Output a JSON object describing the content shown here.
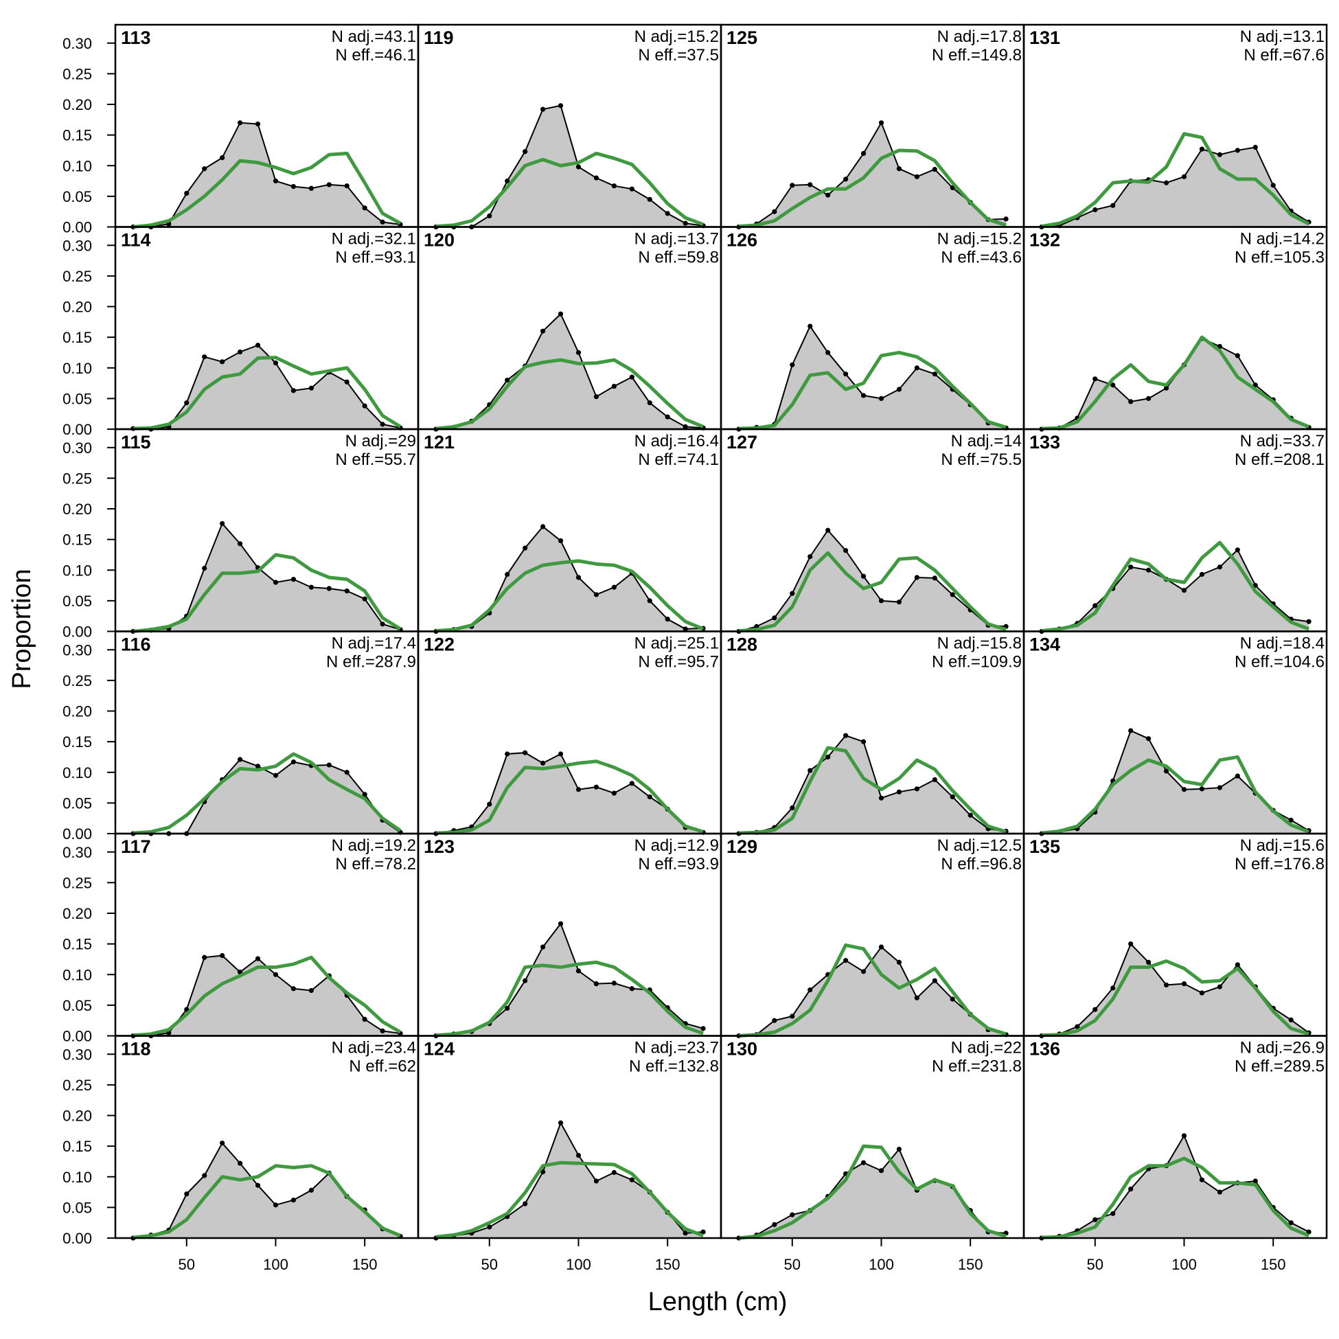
{
  "chart_data": {
    "type": "line",
    "title": "",
    "xlabel": "Length (cm)",
    "ylabel": "Proportion",
    "xlim": [
      10,
      180
    ],
    "ylim": [
      0,
      0.33
    ],
    "xticks": [
      50,
      100,
      150
    ],
    "yticks": [
      0,
      0.05,
      0.1,
      0.15,
      0.2,
      0.25,
      0.3
    ],
    "ytick_labels": [
      "0.00",
      "0.05",
      "0.10",
      "0.15",
      "0.20",
      "0.25",
      "0.30"
    ],
    "grid": false,
    "layout": {
      "columns": 4,
      "rows": 6,
      "fill": "column-major"
    },
    "x": [
      20,
      30,
      40,
      50,
      60,
      70,
      80,
      90,
      100,
      110,
      120,
      130,
      140,
      150,
      160,
      170
    ],
    "colors": {
      "observed_fill": "#c8c8c8",
      "observed_line": "#000000",
      "expected_line": "#3f9a3f",
      "zero_line": "#bdbdbd",
      "frame": "#000000"
    },
    "panels": [
      {
        "label": "113",
        "n_adj": "N adj.=43.1",
        "n_eff": "N eff.=46.1",
        "observed": [
          0.0,
          0.0,
          0.005,
          0.055,
          0.095,
          0.113,
          0.17,
          0.168,
          0.075,
          0.066,
          0.063,
          0.069,
          0.067,
          0.031,
          0.008,
          0.004
        ],
        "expected": [
          0.0,
          0.003,
          0.01,
          0.028,
          0.05,
          0.077,
          0.108,
          0.105,
          0.097,
          0.087,
          0.097,
          0.118,
          0.12,
          0.072,
          0.022,
          0.006
        ]
      },
      {
        "label": "114",
        "n_adj": "N adj.=32.1",
        "n_eff": "N eff.=93.1",
        "observed": [
          0.001,
          0.0,
          0.004,
          0.043,
          0.118,
          0.11,
          0.126,
          0.137,
          0.108,
          0.063,
          0.067,
          0.093,
          0.077,
          0.038,
          0.008,
          0.002
        ],
        "expected": [
          0.001,
          0.002,
          0.008,
          0.028,
          0.065,
          0.085,
          0.09,
          0.116,
          0.117,
          0.103,
          0.09,
          0.095,
          0.1,
          0.065,
          0.022,
          0.004
        ]
      },
      {
        "label": "115",
        "n_adj": "N adj.=29",
        "n_eff": "N eff.=55.7",
        "observed": [
          0.0,
          0.002,
          0.005,
          0.025,
          0.103,
          0.176,
          0.143,
          0.104,
          0.08,
          0.085,
          0.072,
          0.07,
          0.066,
          0.053,
          0.012,
          0.003
        ],
        "expected": [
          0.0,
          0.003,
          0.008,
          0.02,
          0.06,
          0.095,
          0.095,
          0.098,
          0.125,
          0.12,
          0.1,
          0.088,
          0.085,
          0.066,
          0.022,
          0.004
        ]
      },
      {
        "label": "116",
        "n_adj": "N adj.=17.4",
        "n_eff": "N eff.=287.9",
        "observed": [
          0.0,
          0.0,
          0.0,
          0.0,
          0.052,
          0.088,
          0.121,
          0.11,
          0.095,
          0.117,
          0.111,
          0.112,
          0.1,
          0.064,
          0.022,
          0.002
        ],
        "expected": [
          0.001,
          0.003,
          0.01,
          0.03,
          0.057,
          0.085,
          0.106,
          0.104,
          0.11,
          0.13,
          0.116,
          0.088,
          0.072,
          0.057,
          0.025,
          0.005
        ]
      },
      {
        "label": "117",
        "n_adj": "N adj.=19.2",
        "n_eff": "N eff.=78.2",
        "observed": [
          0.0,
          0.0,
          0.005,
          0.043,
          0.128,
          0.131,
          0.104,
          0.126,
          0.1,
          0.077,
          0.074,
          0.098,
          0.066,
          0.027,
          0.008,
          0.004
        ],
        "expected": [
          0.001,
          0.003,
          0.01,
          0.035,
          0.065,
          0.085,
          0.098,
          0.112,
          0.112,
          0.117,
          0.128,
          0.095,
          0.07,
          0.05,
          0.023,
          0.006
        ]
      },
      {
        "label": "118",
        "n_adj": "N adj.=23.4",
        "n_eff": "N eff.=62",
        "observed": [
          0.0,
          0.005,
          0.013,
          0.072,
          0.102,
          0.155,
          0.122,
          0.086,
          0.054,
          0.062,
          0.078,
          0.106,
          0.068,
          0.046,
          0.015,
          0.003
        ],
        "expected": [
          0.001,
          0.004,
          0.01,
          0.03,
          0.066,
          0.1,
          0.095,
          0.1,
          0.118,
          0.115,
          0.118,
          0.106,
          0.068,
          0.043,
          0.016,
          0.004
        ]
      },
      {
        "label": "119",
        "n_adj": "N adj.=15.2",
        "n_eff": "N eff.=37.5",
        "observed": [
          0.0,
          0.0,
          0.0,
          0.018,
          0.075,
          0.123,
          0.192,
          0.198,
          0.098,
          0.08,
          0.067,
          0.062,
          0.045,
          0.022,
          0.006,
          0.002
        ],
        "expected": [
          0.001,
          0.003,
          0.01,
          0.033,
          0.065,
          0.1,
          0.11,
          0.1,
          0.105,
          0.12,
          0.112,
          0.102,
          0.072,
          0.038,
          0.015,
          0.004
        ]
      },
      {
        "label": "120",
        "n_adj": "N adj.=13.7",
        "n_eff": "N eff.=59.8",
        "observed": [
          0.0,
          0.003,
          0.013,
          0.04,
          0.08,
          0.103,
          0.16,
          0.188,
          0.125,
          0.053,
          0.07,
          0.085,
          0.043,
          0.02,
          0.004,
          0.002
        ],
        "expected": [
          0.001,
          0.004,
          0.012,
          0.033,
          0.07,
          0.102,
          0.109,
          0.113,
          0.107,
          0.108,
          0.113,
          0.096,
          0.07,
          0.042,
          0.016,
          0.004
        ]
      },
      {
        "label": "121",
        "n_adj": "N adj.=16.4",
        "n_eff": "N eff.=74.1",
        "observed": [
          0.0,
          0.003,
          0.008,
          0.03,
          0.093,
          0.136,
          0.171,
          0.148,
          0.088,
          0.06,
          0.072,
          0.095,
          0.05,
          0.02,
          0.004,
          0.005
        ],
        "expected": [
          0.001,
          0.003,
          0.01,
          0.035,
          0.07,
          0.095,
          0.108,
          0.112,
          0.115,
          0.11,
          0.108,
          0.098,
          0.072,
          0.042,
          0.016,
          0.004
        ]
      },
      {
        "label": "122",
        "n_adj": "N adj.=25.1",
        "n_eff": "N eff.=95.7",
        "observed": [
          0.0,
          0.005,
          0.011,
          0.048,
          0.13,
          0.132,
          0.115,
          0.13,
          0.072,
          0.076,
          0.066,
          0.082,
          0.06,
          0.04,
          0.01,
          0.002
        ],
        "expected": [
          0.001,
          0.002,
          0.006,
          0.022,
          0.075,
          0.108,
          0.106,
          0.11,
          0.115,
          0.118,
          0.108,
          0.095,
          0.072,
          0.04,
          0.012,
          0.003
        ]
      },
      {
        "label": "123",
        "n_adj": "N adj.=12.9",
        "n_eff": "N eff.=93.9",
        "observed": [
          0.0,
          0.003,
          0.007,
          0.02,
          0.045,
          0.09,
          0.145,
          0.183,
          0.106,
          0.085,
          0.086,
          0.077,
          0.075,
          0.046,
          0.02,
          0.012
        ],
        "expected": [
          0.001,
          0.003,
          0.008,
          0.022,
          0.055,
          0.112,
          0.115,
          0.112,
          0.117,
          0.12,
          0.112,
          0.092,
          0.07,
          0.04,
          0.014,
          0.004
        ]
      },
      {
        "label": "124",
        "n_adj": "N adj.=23.7",
        "n_eff": "N eff.=132.8",
        "observed": [
          0.0,
          0.004,
          0.008,
          0.018,
          0.035,
          0.056,
          0.108,
          0.188,
          0.135,
          0.093,
          0.107,
          0.095,
          0.075,
          0.042,
          0.008,
          0.01
        ],
        "expected": [
          0.002,
          0.005,
          0.012,
          0.025,
          0.04,
          0.074,
          0.118,
          0.123,
          0.122,
          0.121,
          0.12,
          0.105,
          0.075,
          0.042,
          0.015,
          0.004
        ]
      },
      {
        "label": "125",
        "n_adj": "N adj.=17.8",
        "n_eff": "N eff.=149.8",
        "observed": [
          0.0,
          0.005,
          0.025,
          0.068,
          0.069,
          0.052,
          0.078,
          0.12,
          0.17,
          0.095,
          0.082,
          0.094,
          0.064,
          0.04,
          0.012,
          0.013
        ],
        "expected": [
          0.001,
          0.003,
          0.01,
          0.03,
          0.048,
          0.062,
          0.062,
          0.08,
          0.112,
          0.125,
          0.124,
          0.108,
          0.072,
          0.04,
          0.012,
          0.003
        ]
      },
      {
        "label": "126",
        "n_adj": "N adj.=15.2",
        "n_eff": "N eff.=43.6",
        "observed": [
          0.0,
          0.003,
          0.008,
          0.105,
          0.168,
          0.125,
          0.09,
          0.055,
          0.05,
          0.065,
          0.1,
          0.09,
          0.065,
          0.04,
          0.01,
          0.002
        ],
        "expected": [
          0.001,
          0.002,
          0.006,
          0.04,
          0.088,
          0.092,
          0.065,
          0.075,
          0.12,
          0.125,
          0.118,
          0.1,
          0.07,
          0.042,
          0.012,
          0.003
        ]
      },
      {
        "label": "127",
        "n_adj": "N adj.=14",
        "n_eff": "N eff.=75.5",
        "observed": [
          0.0,
          0.008,
          0.022,
          0.062,
          0.122,
          0.165,
          0.132,
          0.09,
          0.05,
          0.048,
          0.088,
          0.087,
          0.06,
          0.035,
          0.01,
          0.008
        ],
        "expected": [
          0.001,
          0.003,
          0.01,
          0.04,
          0.1,
          0.128,
          0.095,
          0.07,
          0.08,
          0.118,
          0.12,
          0.1,
          0.07,
          0.04,
          0.012,
          0.003
        ]
      },
      {
        "label": "128",
        "n_adj": "N adj.=15.8",
        "n_eff": "N eff.=109.9",
        "observed": [
          0.0,
          0.002,
          0.01,
          0.042,
          0.103,
          0.125,
          0.16,
          0.15,
          0.058,
          0.068,
          0.073,
          0.088,
          0.06,
          0.03,
          0.008,
          0.004
        ],
        "expected": [
          0.001,
          0.002,
          0.006,
          0.025,
          0.085,
          0.14,
          0.135,
          0.09,
          0.072,
          0.09,
          0.12,
          0.105,
          0.07,
          0.04,
          0.012,
          0.003
        ]
      },
      {
        "label": "129",
        "n_adj": "N adj.=12.5",
        "n_eff": "N eff.=96.8",
        "observed": [
          0.0,
          0.002,
          0.025,
          0.032,
          0.075,
          0.1,
          0.123,
          0.105,
          0.145,
          0.12,
          0.062,
          0.09,
          0.06,
          0.035,
          0.01,
          0.002
        ],
        "expected": [
          0.0,
          0.002,
          0.006,
          0.02,
          0.042,
          0.09,
          0.148,
          0.142,
          0.1,
          0.078,
          0.092,
          0.11,
          0.072,
          0.035,
          0.012,
          0.003
        ]
      },
      {
        "label": "130",
        "n_adj": "N adj.=22",
        "n_eff": "N eff.=231.8",
        "observed": [
          0.0,
          0.005,
          0.022,
          0.038,
          0.045,
          0.068,
          0.105,
          0.123,
          0.11,
          0.145,
          0.078,
          0.094,
          0.084,
          0.045,
          0.01,
          0.008
        ],
        "expected": [
          0.0,
          0.003,
          0.012,
          0.025,
          0.045,
          0.065,
          0.095,
          0.15,
          0.148,
          0.108,
          0.08,
          0.095,
          0.085,
          0.04,
          0.012,
          0.003
        ]
      },
      {
        "label": "131",
        "n_adj": "N adj.=13.1",
        "n_eff": "N eff.=67.6",
        "observed": [
          0.0,
          0.002,
          0.015,
          0.028,
          0.035,
          0.075,
          0.077,
          0.072,
          0.082,
          0.127,
          0.118,
          0.125,
          0.13,
          0.068,
          0.026,
          0.008
        ],
        "expected": [
          0.001,
          0.006,
          0.018,
          0.04,
          0.072,
          0.075,
          0.073,
          0.098,
          0.152,
          0.146,
          0.095,
          0.078,
          0.078,
          0.052,
          0.02,
          0.005
        ]
      },
      {
        "label": "132",
        "n_adj": "N adj.=14.2",
        "n_eff": "N eff.=105.3",
        "observed": [
          0.0,
          0.002,
          0.018,
          0.082,
          0.072,
          0.045,
          0.05,
          0.067,
          0.105,
          0.148,
          0.135,
          0.12,
          0.072,
          0.048,
          0.018,
          0.003
        ],
        "expected": [
          0.001,
          0.002,
          0.012,
          0.045,
          0.082,
          0.105,
          0.078,
          0.072,
          0.105,
          0.15,
          0.128,
          0.085,
          0.065,
          0.045,
          0.016,
          0.004
        ]
      },
      {
        "label": "133",
        "n_adj": "N adj.=33.7",
        "n_eff": "N eff.=208.1",
        "observed": [
          0.0,
          0.004,
          0.013,
          0.042,
          0.07,
          0.105,
          0.1,
          0.085,
          0.067,
          0.093,
          0.105,
          0.133,
          0.075,
          0.045,
          0.02,
          0.016
        ],
        "expected": [
          0.001,
          0.004,
          0.01,
          0.03,
          0.075,
          0.118,
          0.11,
          0.085,
          0.08,
          0.12,
          0.145,
          0.11,
          0.065,
          0.04,
          0.015,
          0.004
        ]
      },
      {
        "label": "134",
        "n_adj": "N adj.=18.4",
        "n_eff": "N eff.=104.6",
        "observed": [
          0.0,
          0.003,
          0.008,
          0.035,
          0.086,
          0.168,
          0.155,
          0.102,
          0.072,
          0.073,
          0.075,
          0.094,
          0.066,
          0.038,
          0.022,
          0.005
        ],
        "expected": [
          0.001,
          0.004,
          0.012,
          0.04,
          0.08,
          0.103,
          0.12,
          0.11,
          0.085,
          0.08,
          0.12,
          0.125,
          0.068,
          0.037,
          0.014,
          0.003
        ]
      },
      {
        "label": "135",
        "n_adj": "N adj.=15.6",
        "n_eff": "N eff.=176.8",
        "observed": [
          0.0,
          0.003,
          0.015,
          0.043,
          0.078,
          0.15,
          0.12,
          0.083,
          0.085,
          0.07,
          0.08,
          0.116,
          0.08,
          0.045,
          0.026,
          0.005
        ],
        "expected": [
          0.001,
          0.002,
          0.008,
          0.025,
          0.06,
          0.112,
          0.112,
          0.122,
          0.11,
          0.088,
          0.09,
          0.11,
          0.078,
          0.04,
          0.012,
          0.003
        ]
      },
      {
        "label": "136",
        "n_adj": "N adj.=26.9",
        "n_eff": "N eff.=289.5",
        "observed": [
          0.0,
          0.003,
          0.012,
          0.03,
          0.04,
          0.08,
          0.113,
          0.118,
          0.167,
          0.095,
          0.075,
          0.09,
          0.093,
          0.05,
          0.025,
          0.01
        ],
        "expected": [
          0.001,
          0.002,
          0.008,
          0.018,
          0.055,
          0.1,
          0.118,
          0.118,
          0.13,
          0.115,
          0.09,
          0.09,
          0.087,
          0.045,
          0.016,
          0.004
        ]
      }
    ]
  }
}
